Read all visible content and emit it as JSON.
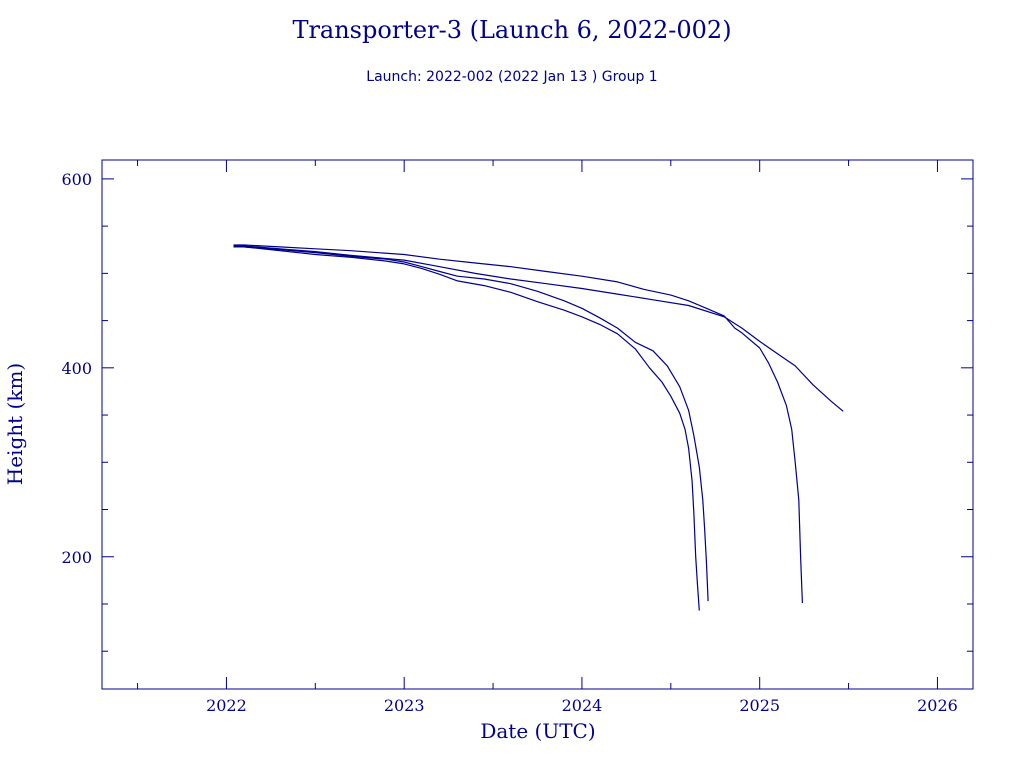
{
  "chart_data": {
    "type": "line",
    "title": "Transporter-3 (Launch 6, 2022-002)",
    "subtitle": "Launch: 2022-002  (2022 Jan 13 )  Group 1",
    "xlabel": "Date (UTC)",
    "ylabel": "Height (km)",
    "xlim": [
      2021.3,
      2026.2
    ],
    "ylim": [
      60,
      620
    ],
    "x_ticks": [
      2022,
      2023,
      2024,
      2025,
      2026
    ],
    "x_tick_labels": [
      "2022",
      "2023",
      "2024",
      "2025",
      "2026"
    ],
    "x_minor_ticks": [
      2021.5,
      2022.5,
      2023.5,
      2024.5,
      2025.5
    ],
    "y_ticks": [
      200,
      400,
      600
    ],
    "y_tick_labels": [
      "200",
      "400",
      "600"
    ],
    "y_minor_ticks": [
      100,
      150,
      250,
      300,
      350,
      450,
      500,
      550
    ],
    "grid": false,
    "colors": {
      "line": "#00008b",
      "axes": "#00008b",
      "text": "#00008b"
    },
    "series": [
      {
        "x": [
          2022.04,
          2022.1,
          2022.3,
          2022.5,
          2022.7,
          2022.9,
          2023.0,
          2023.1,
          2023.2,
          2023.3,
          2023.45,
          2023.6,
          2023.75,
          2023.9,
          2024.0,
          2024.1,
          2024.2,
          2024.3,
          2024.38,
          2024.45,
          2024.5,
          2024.55,
          2024.58,
          2024.6,
          2024.62,
          2024.63,
          2024.64,
          2024.65,
          2024.66
        ],
        "y": [
          528,
          528,
          524,
          520,
          517,
          513,
          510,
          505,
          499,
          492,
          487,
          480,
          470,
          461,
          454,
          446,
          436,
          420,
          400,
          385,
          370,
          352,
          335,
          315,
          280,
          245,
          200,
          170,
          143
        ]
      },
      {
        "x": [
          2022.04,
          2022.1,
          2022.3,
          2022.5,
          2022.7,
          2022.9,
          2023.0,
          2023.1,
          2023.2,
          2023.3,
          2023.45,
          2023.6,
          2023.75,
          2023.9,
          2024.0,
          2024.1,
          2024.2,
          2024.3,
          2024.4,
          2024.48,
          2024.55,
          2024.6,
          2024.63,
          2024.66,
          2024.68,
          2024.69,
          2024.7,
          2024.71
        ],
        "y": [
          528,
          528,
          525,
          522,
          518,
          515,
          512,
          507,
          502,
          497,
          494,
          489,
          481,
          471,
          463,
          453,
          442,
          427,
          418,
          402,
          380,
          355,
          328,
          295,
          260,
          230,
          195,
          153
        ]
      },
      {
        "x": [
          2022.04,
          2022.1,
          2022.3,
          2022.5,
          2022.7,
          2023.0,
          2023.2,
          2023.4,
          2023.6,
          2023.8,
          2024.0,
          2024.2,
          2024.35,
          2024.5,
          2024.6,
          2024.7,
          2024.8,
          2024.86,
          2024.9,
          2025.0,
          2025.05,
          2025.1,
          2025.15,
          2025.18,
          2025.2,
          2025.22,
          2025.23,
          2025.24
        ],
        "y": [
          530,
          530,
          528,
          526,
          524,
          520,
          515,
          511,
          507,
          502,
          497,
          491,
          483,
          477,
          471,
          463,
          455,
          442,
          437,
          421,
          405,
          385,
          360,
          335,
          300,
          260,
          200,
          151
        ]
      },
      {
        "x": [
          2022.04,
          2022.1,
          2022.3,
          2022.5,
          2022.7,
          2023.0,
          2023.2,
          2023.4,
          2023.6,
          2023.8,
          2024.0,
          2024.2,
          2024.4,
          2024.6,
          2024.8,
          2024.9,
          2025.0,
          2025.1,
          2025.2,
          2025.3,
          2025.4,
          2025.47
        ],
        "y": [
          529,
          529,
          526,
          523,
          519,
          514,
          507,
          500,
          494,
          489,
          484,
          478,
          472,
          466,
          454,
          442,
          428,
          415,
          402,
          382,
          365,
          354
        ]
      }
    ]
  }
}
